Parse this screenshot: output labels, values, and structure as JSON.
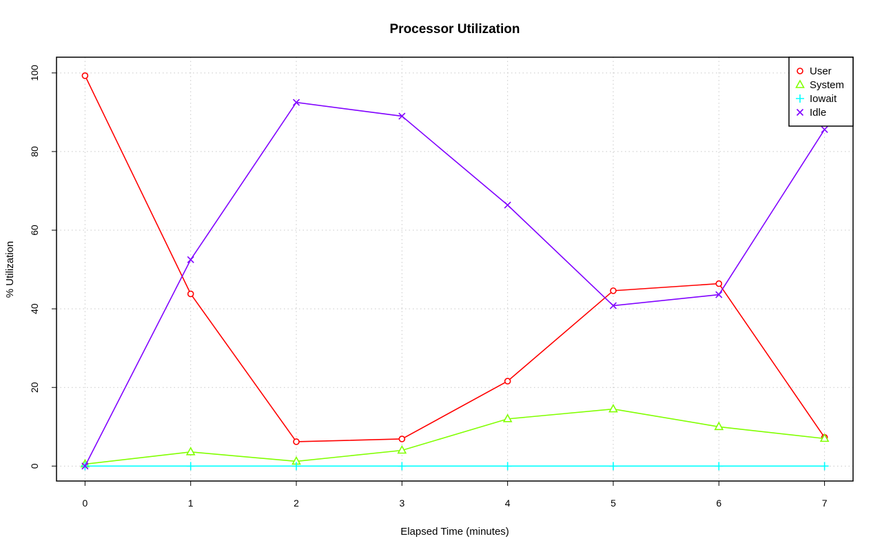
{
  "chart_data": {
    "type": "line",
    "title": "Processor Utilization",
    "xlabel": "Elapsed Time (minutes)",
    "ylabel": "% Utilization",
    "x": [
      0,
      1,
      2,
      3,
      4,
      5,
      6,
      7
    ],
    "xlim": [
      -0.27,
      7.27
    ],
    "ylim": [
      -3.8,
      104
    ],
    "x_ticks": [
      0,
      1,
      2,
      3,
      4,
      5,
      6,
      7
    ],
    "y_ticks": [
      0,
      20,
      40,
      60,
      80,
      100
    ],
    "grid": true,
    "legend_position": "top-right",
    "series": [
      {
        "name": "User",
        "color": "#ff0000",
        "marker": "circle",
        "values": [
          99.3,
          43.8,
          6.2,
          6.9,
          21.6,
          44.6,
          46.4,
          7.3
        ]
      },
      {
        "name": "System",
        "color": "#80ff00",
        "marker": "triangle",
        "values": [
          0.5,
          3.6,
          1.2,
          4.0,
          12.0,
          14.5,
          10.0,
          7.0
        ]
      },
      {
        "name": "Iowait",
        "color": "#00ffff",
        "marker": "plus",
        "values": [
          0,
          0,
          0,
          0,
          0,
          0,
          0,
          0
        ]
      },
      {
        "name": "Idle",
        "color": "#8000ff",
        "marker": "cross",
        "values": [
          0,
          52.5,
          92.5,
          89.0,
          66.4,
          40.8,
          43.6,
          85.6
        ]
      }
    ]
  }
}
